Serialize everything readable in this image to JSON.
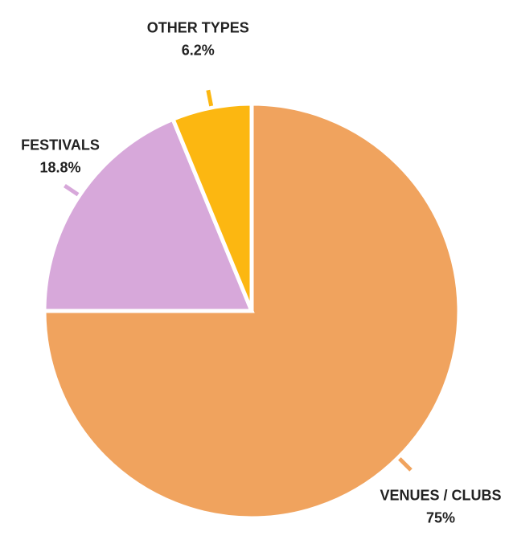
{
  "chart_data": {
    "type": "pie",
    "categories": [
      "VENUES / CLUBS",
      "FESTIVALS",
      "OTHER TYPES"
    ],
    "values": [
      75,
      18.8,
      6.2
    ],
    "value_labels": [
      "75%",
      "18.8%",
      "6.2%"
    ],
    "colors": [
      "#f0a35e",
      "#d7a8da",
      "#fcb711"
    ]
  }
}
